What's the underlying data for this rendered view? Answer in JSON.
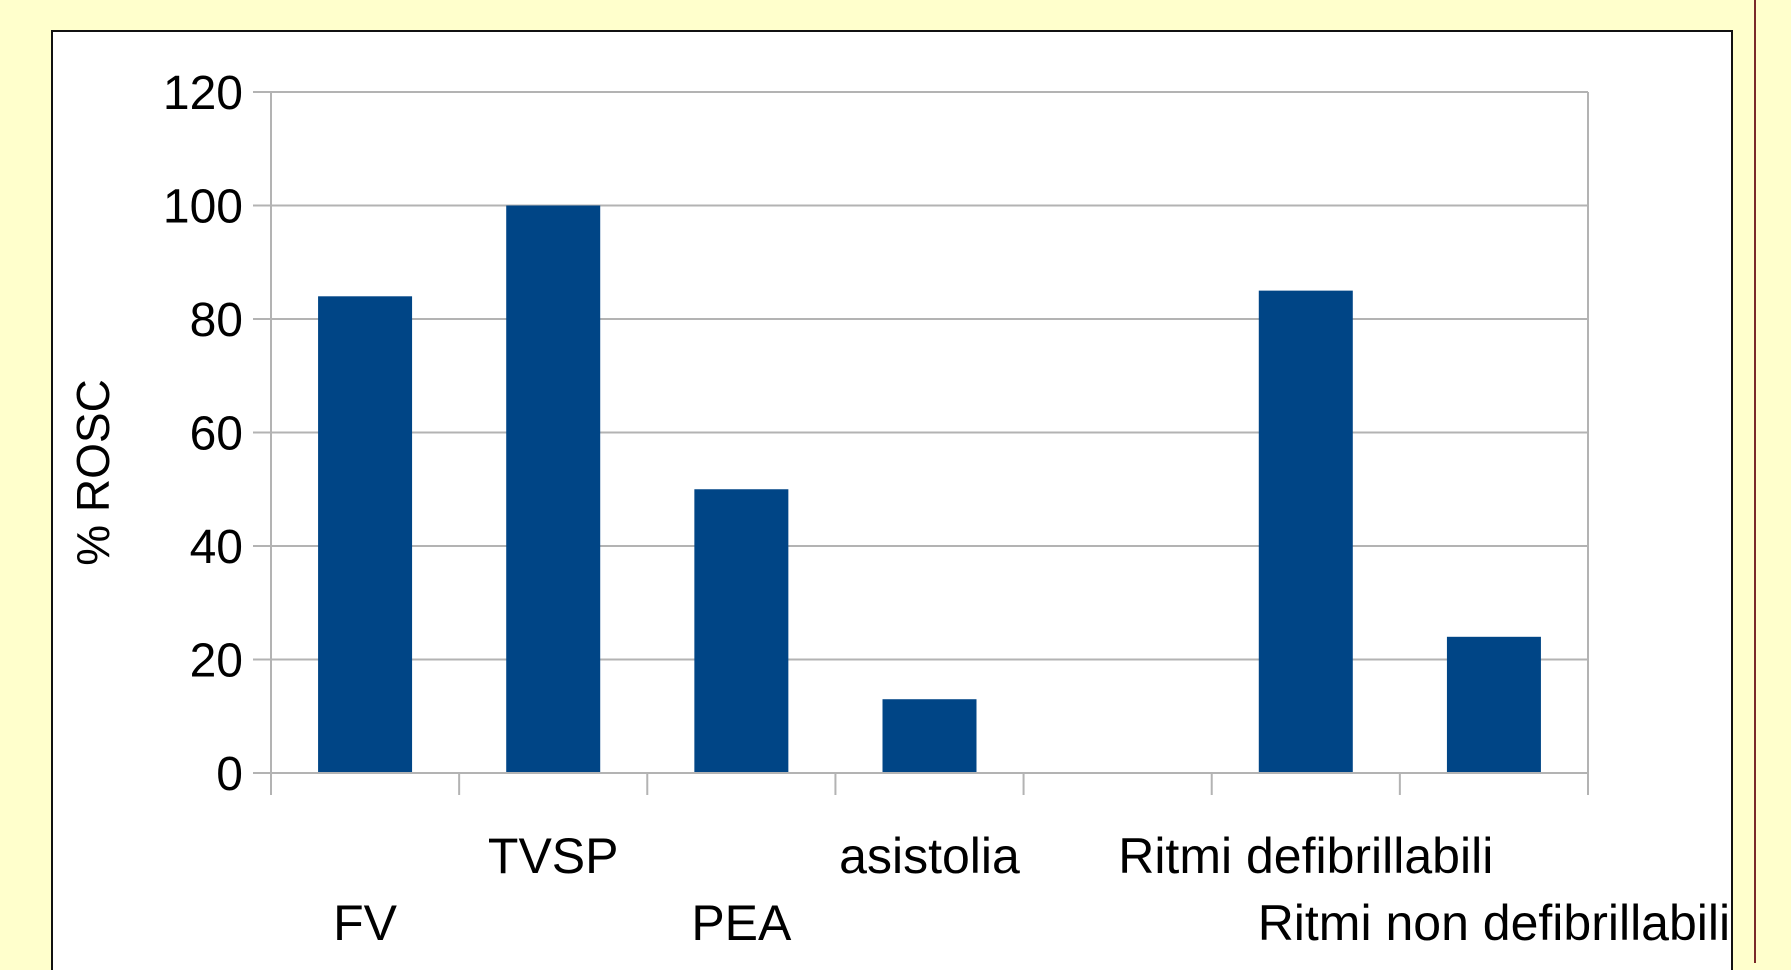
{
  "page": {
    "background": "#ffffcc",
    "panel_background": "#ffffff",
    "right_rule_color": "#7a2a2a"
  },
  "chart_data": {
    "type": "bar",
    "categories": [
      "FV",
      "TVSP",
      "PEA",
      "asistolia",
      "",
      "Ritmi defibrillabili",
      "Ritmi non defibrillabili"
    ],
    "values": [
      84,
      100,
      50,
      13,
      null,
      85,
      24
    ],
    "title": "",
    "xlabel": "",
    "ylabel": "% ROSC",
    "ylim": [
      0,
      120
    ],
    "yticks": [
      0,
      20,
      40,
      60,
      80,
      100,
      120
    ],
    "grid": true,
    "legend": "none",
    "bar_color": "#004586",
    "grid_color": "#b3b3b3"
  }
}
